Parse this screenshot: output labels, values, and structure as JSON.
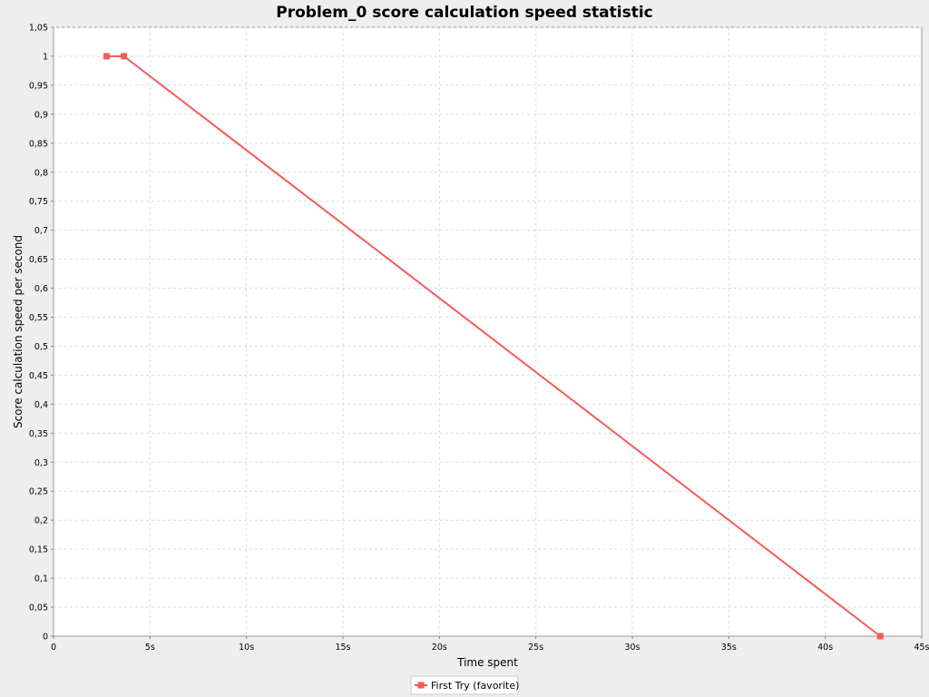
{
  "chart_data": {
    "type": "line",
    "title": "Problem_0 score calculation speed statistic",
    "xlabel": "Time spent",
    "ylabel": "Score calculation speed per second",
    "xlim": [
      0,
      45
    ],
    "ylim": [
      0,
      1.05
    ],
    "x_ticks": [
      0,
      5,
      10,
      15,
      20,
      25,
      30,
      35,
      40,
      45
    ],
    "x_tick_labels": [
      "0",
      "5s",
      "10s",
      "15s",
      "20s",
      "25s",
      "30s",
      "35s",
      "40s",
      "45s"
    ],
    "y_ticks": [
      0,
      0.05,
      0.1,
      0.15,
      0.2,
      0.25,
      0.3,
      0.35,
      0.4,
      0.45,
      0.5,
      0.55,
      0.6,
      0.65,
      0.7,
      0.75,
      0.8,
      0.85,
      0.9,
      0.95,
      1,
      1.05
    ],
    "y_tick_labels": [
      "0",
      "0,05",
      "0,1",
      "0,15",
      "0,2",
      "0,25",
      "0,3",
      "0,35",
      "0,4",
      "0,45",
      "0,5",
      "0,55",
      "0,6",
      "0,65",
      "0,7",
      "0,75",
      "0,8",
      "0,85",
      "0,9",
      "0,95",
      "1",
      "1,05"
    ],
    "grid": true,
    "legend_position": "bottom-center",
    "series": [
      {
        "name": "First Try (favorite)",
        "color": "#f55b5b",
        "marker": "square",
        "x": [
          2.75,
          3.65,
          42.85
        ],
        "y": [
          1,
          1,
          0
        ]
      }
    ]
  }
}
